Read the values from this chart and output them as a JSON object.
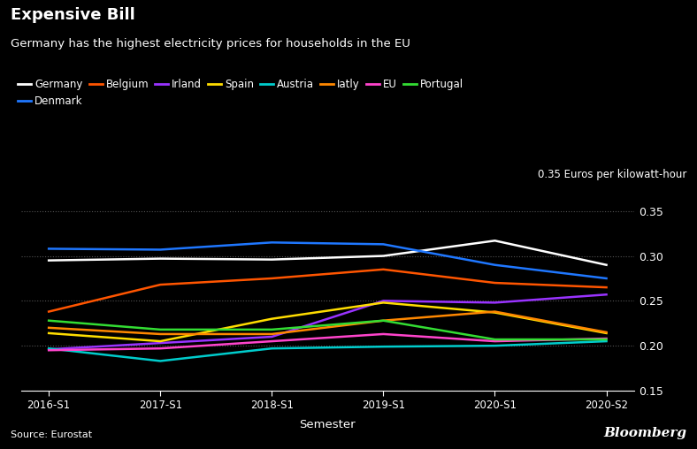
{
  "title": "Expensive Bill",
  "subtitle": "Germany has the highest electricity prices for households in the EU",
  "source": "Source: Eurostat",
  "unit_label": "0.35 Euros per kilowatt-hour",
  "xlabel": "Semester",
  "background_color": "#000000",
  "text_color": "#ffffff",
  "x_labels": [
    "2016-S1",
    "2017-S1",
    "2018-S1",
    "2019-S1",
    "2020-S1",
    "2020-S2"
  ],
  "ylim": [
    0.15,
    0.36
  ],
  "yticks": [
    0.15,
    0.2,
    0.25,
    0.3,
    0.35
  ],
  "series": [
    {
      "name": "Germany",
      "color": "#ffffff",
      "values": [
        0.295,
        0.297,
        0.296,
        0.3,
        0.317,
        0.29
      ]
    },
    {
      "name": "Denmark",
      "color": "#1f77ff",
      "values": [
        0.308,
        0.307,
        0.315,
        0.313,
        0.29,
        0.275
      ]
    },
    {
      "name": "Belgium",
      "color": "#ff5500",
      "values": [
        0.238,
        0.268,
        0.275,
        0.285,
        0.27,
        0.265
      ]
    },
    {
      "name": "Irland",
      "color": "#9933ff",
      "values": [
        0.196,
        0.203,
        0.21,
        0.25,
        0.248,
        0.257
      ]
    },
    {
      "name": "Spain",
      "color": "#ffdd00",
      "values": [
        0.214,
        0.205,
        0.23,
        0.248,
        0.237,
        0.214
      ]
    },
    {
      "name": "Austria",
      "color": "#00cccc",
      "values": [
        0.197,
        0.183,
        0.197,
        0.199,
        0.2,
        0.205
      ]
    },
    {
      "name": "Iatly",
      "color": "#ff8800",
      "values": [
        0.22,
        0.213,
        0.213,
        0.228,
        0.238,
        0.215
      ]
    },
    {
      "name": "EU",
      "color": "#ff44cc",
      "values": [
        0.195,
        0.197,
        0.205,
        0.213,
        0.205,
        0.208
      ]
    },
    {
      "name": "Portugal",
      "color": "#33dd33",
      "values": [
        0.228,
        0.218,
        0.218,
        0.228,
        0.207,
        0.207
      ]
    }
  ]
}
